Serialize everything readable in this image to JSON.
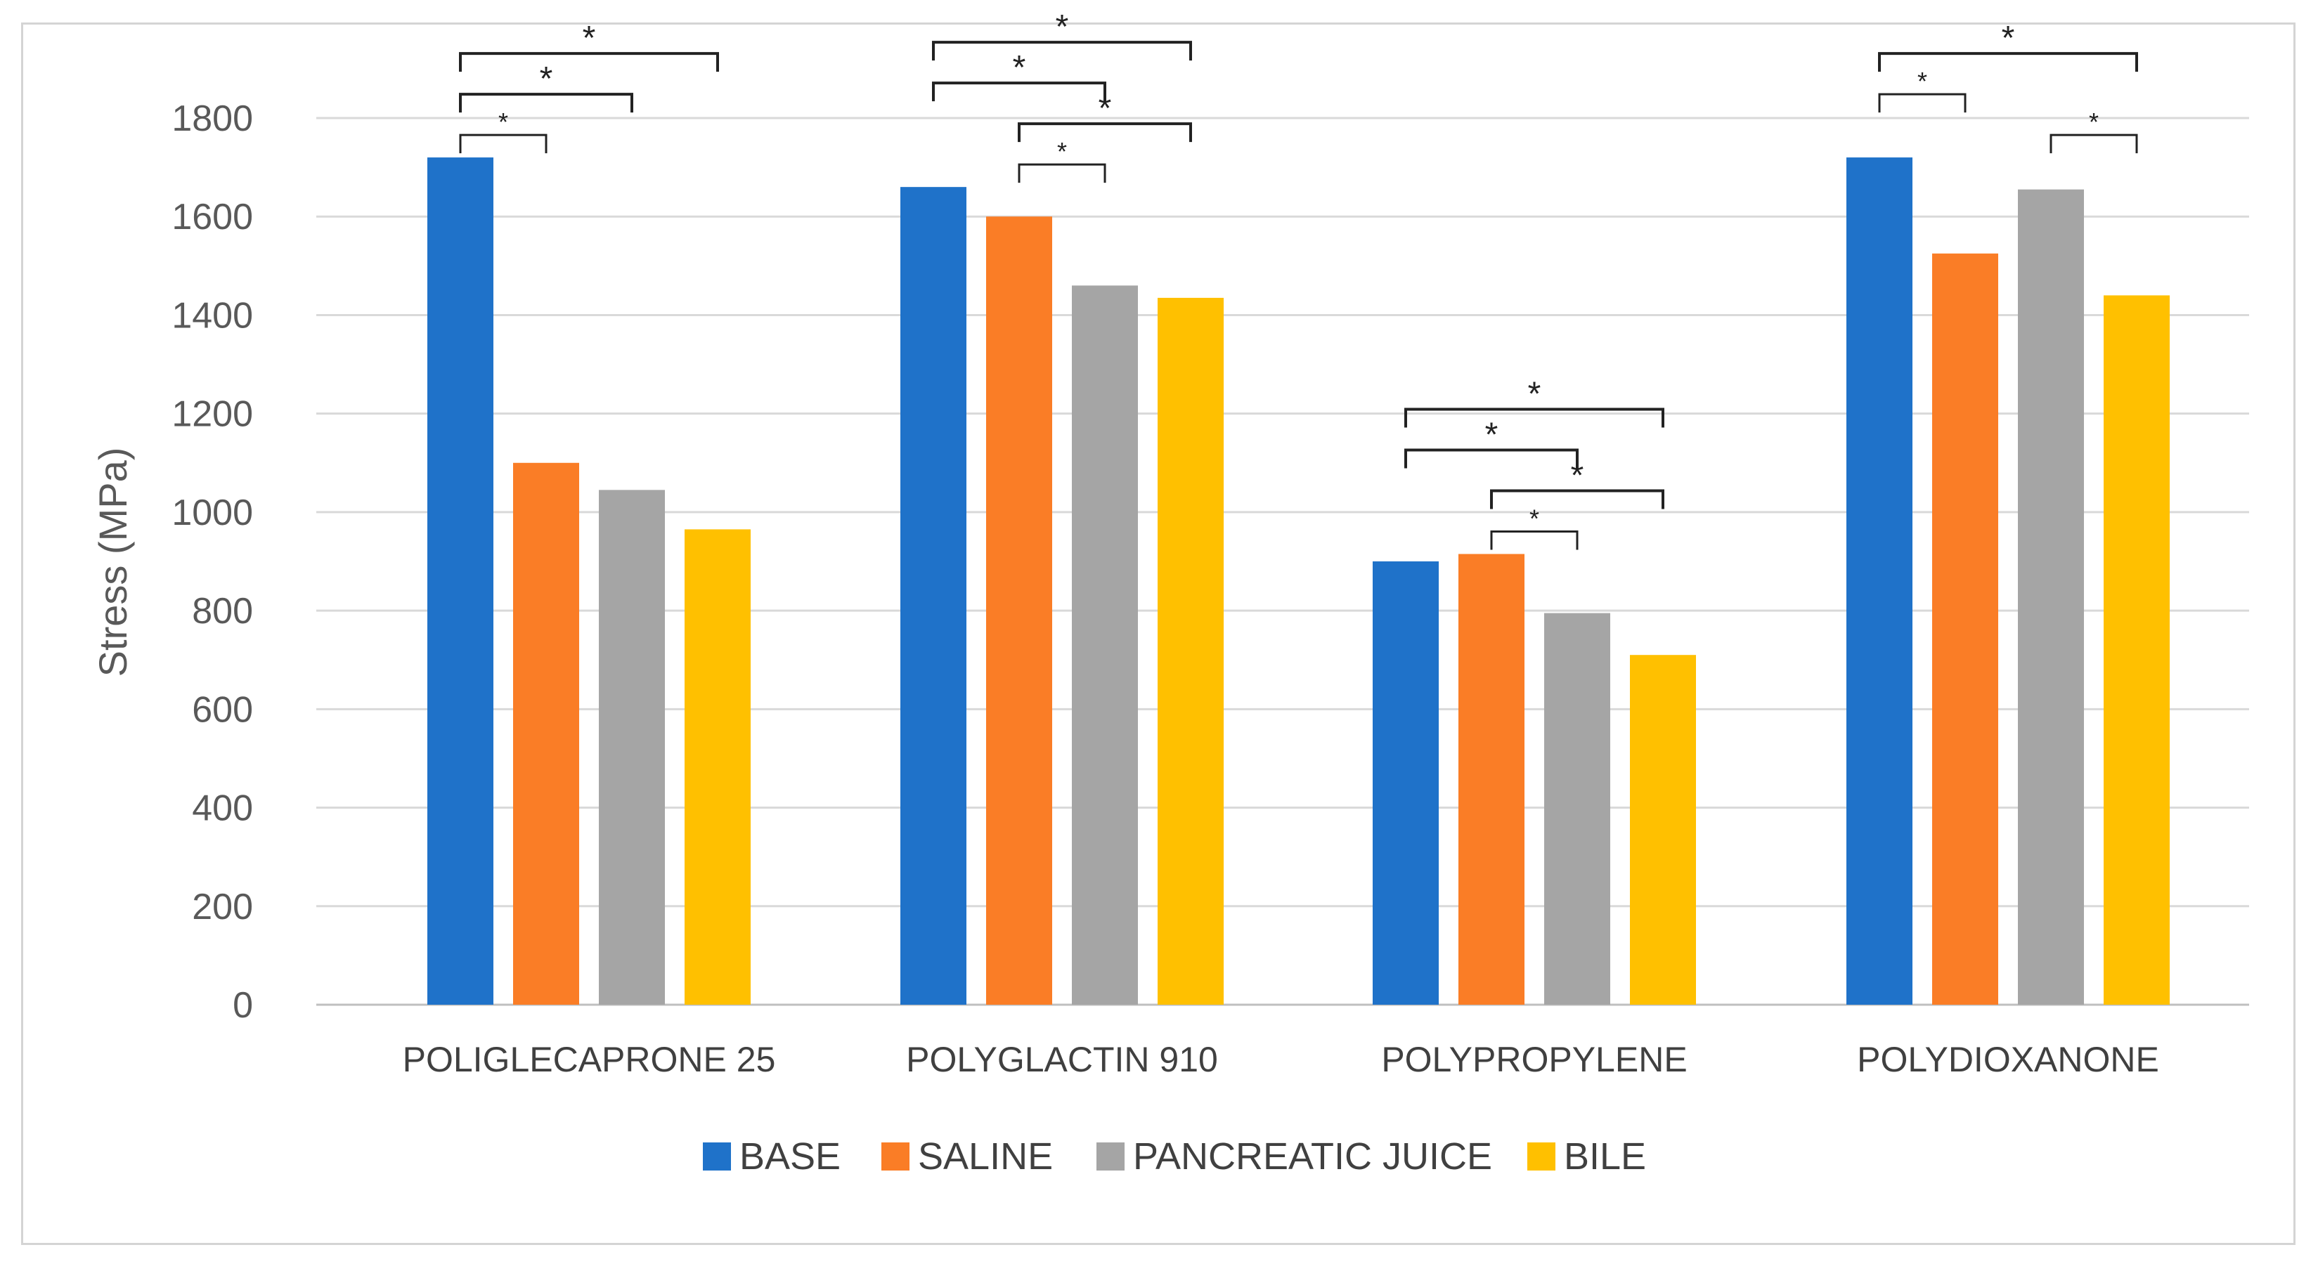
{
  "chart_data": {
    "type": "bar",
    "title": "",
    "xlabel": "",
    "ylabel": "Stress (MPa)",
    "ylim": [
      0,
      1800
    ],
    "yticks": [
      0,
      200,
      400,
      600,
      800,
      1000,
      1200,
      1400,
      1600,
      1800
    ],
    "grid": true,
    "legend_position": "bottom",
    "categories": [
      "POLIGLECAPRONE 25",
      "POLYGLACTIN 910",
      "POLYPROPYLENE",
      "POLYDIOXANONE"
    ],
    "series": [
      {
        "name": "BASE",
        "color": "#1F72C9",
        "values": [
          1720,
          1660,
          900,
          1720
        ]
      },
      {
        "name": "SALINE",
        "color": "#FA7D26",
        "values": [
          1100,
          1600,
          915,
          1525
        ]
      },
      {
        "name": "PANCREATIC JUICE",
        "color": "#A5A5A5",
        "values": [
          1045,
          1460,
          795,
          1655
        ]
      },
      {
        "name": "BILE",
        "color": "#FFC000",
        "values": [
          965,
          1435,
          710,
          1440
        ]
      }
    ],
    "significance": [
      {
        "category": 0,
        "from": 0,
        "to": 3,
        "label": "*"
      },
      {
        "category": 0,
        "from": 0,
        "to": 2,
        "label": "*"
      },
      {
        "category": 0,
        "from": 0,
        "to": 1,
        "label": "*"
      },
      {
        "category": 1,
        "from": 0,
        "to": 3,
        "label": "*"
      },
      {
        "category": 1,
        "from": 0,
        "to": 2,
        "label": "*"
      },
      {
        "category": 1,
        "from": 1,
        "to": 3,
        "label": "*"
      },
      {
        "category": 1,
        "from": 1,
        "to": 2,
        "label": "*"
      },
      {
        "category": 2,
        "from": 0,
        "to": 3,
        "label": "*"
      },
      {
        "category": 2,
        "from": 0,
        "to": 2,
        "label": "*"
      },
      {
        "category": 2,
        "from": 1,
        "to": 3,
        "label": "*"
      },
      {
        "category": 2,
        "from": 1,
        "to": 2,
        "label": "*"
      },
      {
        "category": 3,
        "from": 0,
        "to": 3,
        "label": "*"
      },
      {
        "category": 3,
        "from": 0,
        "to": 1,
        "label": "*"
      },
      {
        "category": 3,
        "from": 2,
        "to": 3,
        "label": "*"
      }
    ],
    "colors": {
      "gridline": "#d9d9d9",
      "axis": "#bfbfbf",
      "bracket": "#222222"
    }
  }
}
